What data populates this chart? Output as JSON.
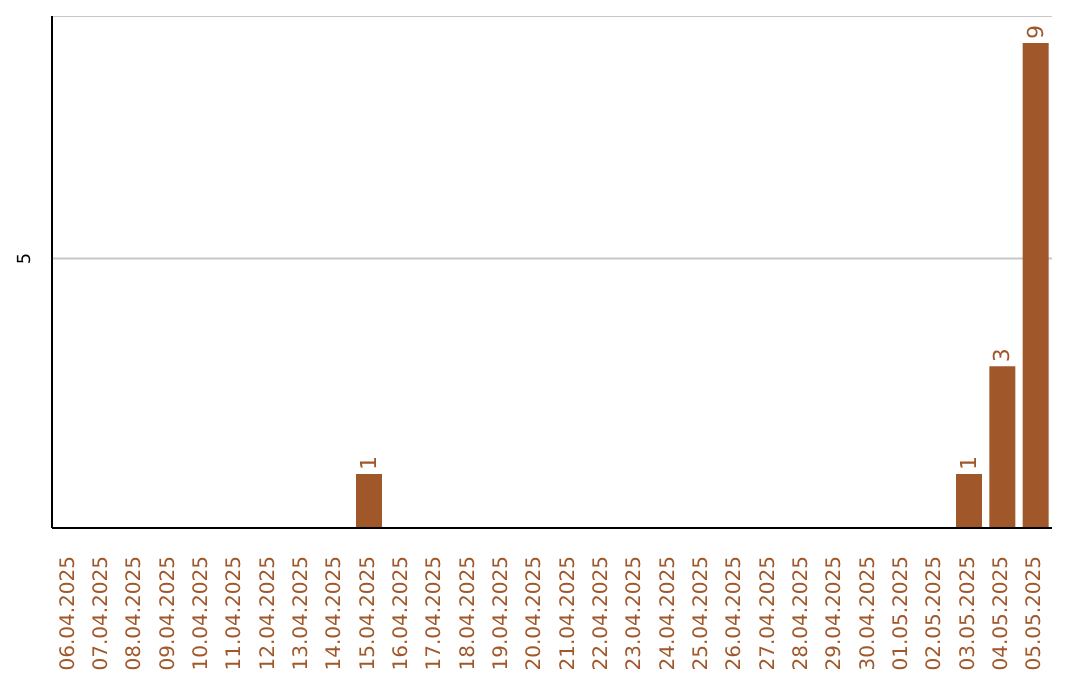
{
  "chart_data": {
    "type": "bar",
    "categories": [
      "06.04.2025",
      "07.04.2025",
      "08.04.2025",
      "09.04.2025",
      "10.04.2025",
      "11.04.2025",
      "12.04.2025",
      "13.04.2025",
      "14.04.2025",
      "15.04.2025",
      "16.04.2025",
      "17.04.2025",
      "18.04.2025",
      "19.04.2025",
      "20.04.2025",
      "21.04.2025",
      "22.04.2025",
      "23.04.2025",
      "24.04.2025",
      "25.04.2025",
      "26.04.2025",
      "27.04.2025",
      "28.04.2025",
      "29.04.2025",
      "30.04.2025",
      "01.05.2025",
      "02.05.2025",
      "03.05.2025",
      "04.05.2025",
      "05.05.2025"
    ],
    "values": [
      0,
      0,
      0,
      0,
      0,
      0,
      0,
      0,
      0,
      1,
      0,
      0,
      0,
      0,
      0,
      0,
      0,
      0,
      0,
      0,
      0,
      0,
      0,
      0,
      0,
      0,
      0,
      1,
      3,
      9
    ],
    "value_labels": [
      null,
      null,
      null,
      null,
      null,
      null,
      null,
      null,
      null,
      "1",
      null,
      null,
      null,
      null,
      null,
      null,
      null,
      null,
      null,
      null,
      null,
      null,
      null,
      null,
      null,
      null,
      null,
      "1",
      "3",
      "9"
    ],
    "color": "#a0572a",
    "ylim": [
      0,
      9.5
    ],
    "yticks": [
      5
    ],
    "grid": "y"
  }
}
